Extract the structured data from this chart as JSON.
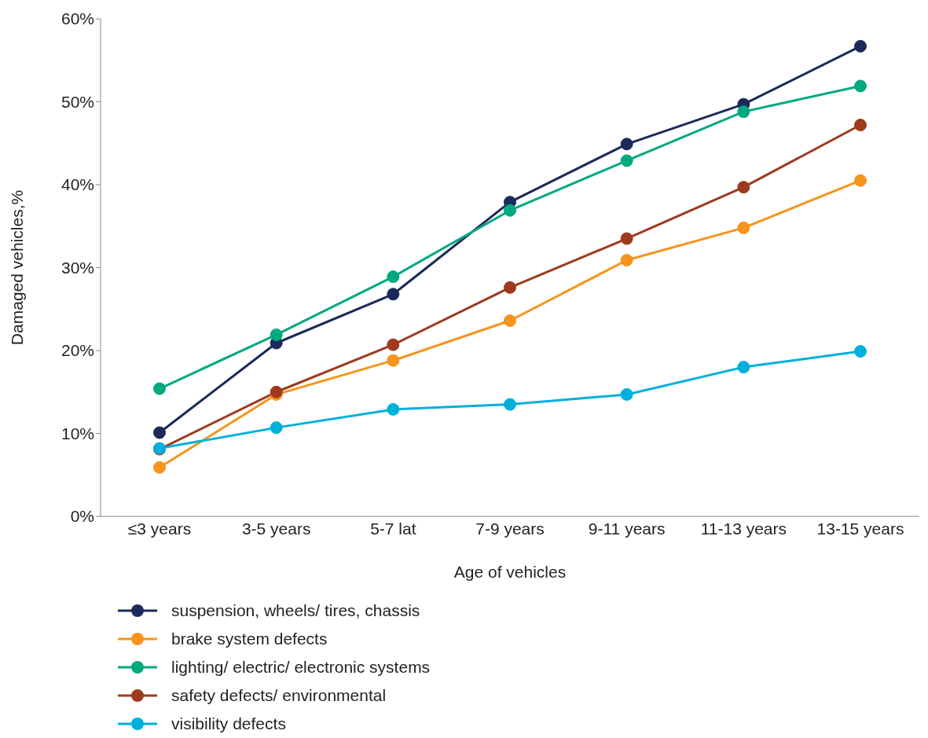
{
  "chart_data": {
    "type": "line",
    "xlabel": "Age of vehicles",
    "ylabel": "Damaged vehicles,%",
    "categories": [
      "≤3 years",
      "3-5 years",
      "5-7 lat",
      "7-9 years",
      "9-11 years",
      "11-13 years",
      "13-15 years"
    ],
    "series": [
      {
        "name": "suspension, wheels/ tires, chassis",
        "color": "#1b2a5a",
        "values": [
          10.1,
          20.9,
          26.8,
          37.9,
          44.9,
          49.7,
          56.7
        ]
      },
      {
        "name": "brake system defects",
        "color": "#f7941d",
        "values": [
          5.9,
          14.7,
          18.8,
          23.6,
          30.9,
          34.8,
          40.5
        ]
      },
      {
        "name": "lighting/ electric/ electronic systems",
        "color": "#00a97f",
        "values": [
          15.4,
          21.9,
          28.9,
          36.9,
          42.9,
          48.8,
          51.9
        ]
      },
      {
        "name": "safety defects/ environmental",
        "color": "#9e3a1e",
        "values": [
          8.1,
          15.0,
          20.7,
          27.6,
          33.5,
          39.7,
          47.2
        ]
      },
      {
        "name": "visibility defects",
        "color": "#00b0dc",
        "values": [
          8.2,
          10.7,
          12.9,
          13.5,
          14.7,
          18.0,
          19.9
        ]
      }
    ],
    "ylim": [
      0,
      60
    ],
    "yticks": [
      {
        "value": 0,
        "label": "0%"
      },
      {
        "value": 10,
        "label": "10%"
      },
      {
        "value": 20,
        "label": "20%"
      },
      {
        "value": 30,
        "label": "30%"
      },
      {
        "value": 40,
        "label": "40%"
      },
      {
        "value": 50,
        "label": "50%"
      },
      {
        "value": 60,
        "label": "60%"
      }
    ],
    "grid": false,
    "legend": "bottom",
    "marker": "circle",
    "line_style": "solid"
  }
}
